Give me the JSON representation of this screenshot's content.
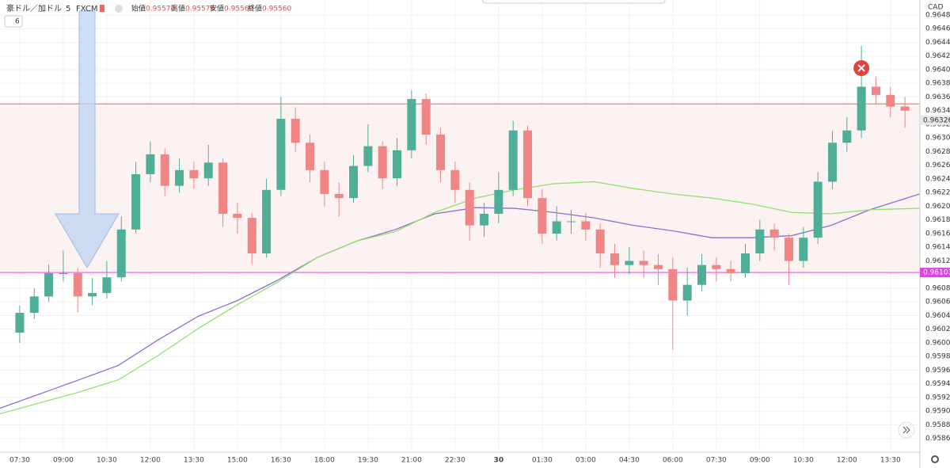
{
  "chart_data": {
    "type": "candlestick",
    "header": {
      "symbol": "豪ドル／加ドル",
      "interval": "5",
      "source": "FXCM",
      "open_label": "始値",
      "open": "0.95570",
      "high_label": "高値",
      "high": "0.95570",
      "low_label": "安値",
      "low": "0.95560",
      "close_label": "終値",
      "close": "0.95560",
      "indicators": "6"
    },
    "y_unit": "CAD",
    "up_color": "#4fae97",
    "down_color": "#ef8585",
    "x": [
      0,
      1,
      2,
      3,
      4,
      5,
      6,
      7,
      8,
      9,
      10,
      11,
      12,
      13,
      14,
      15,
      16,
      17,
      18,
      19,
      20,
      21,
      22,
      23,
      24,
      25,
      26,
      27,
      28,
      29,
      30,
      31,
      32,
      33,
      34,
      35,
      36,
      37,
      38,
      39,
      40,
      41,
      42,
      43,
      44,
      45,
      46,
      47,
      48,
      49,
      50,
      51,
      52,
      53,
      54,
      55,
      56,
      57,
      58,
      59,
      60,
      61
    ],
    "open": [
      0.96015,
      0.96044,
      0.96068,
      0.96102,
      0.96102,
      0.96068,
      0.96073,
      0.96096,
      0.96166,
      0.96247,
      0.96276,
      0.9623,
      0.96253,
      0.96241,
      0.96264,
      0.96189,
      0.96183,
      0.96131,
      0.96224,
      0.96328,
      0.96293,
      0.96253,
      0.96218,
      0.96212,
      0.96259,
      0.96288,
      0.96241,
      0.96282,
      0.96357,
      0.96305,
      0.96253,
      0.96224,
      0.96172,
      0.96189,
      0.96224,
      0.96311,
      0.96212,
      0.9616,
      0.96178,
      0.96178,
      0.96166,
      0.96131,
      0.96114,
      0.9612,
      0.96114,
      0.96108,
      0.96062,
      0.96085,
      0.96114,
      0.96108,
      0.96102,
      0.96131,
      0.96166,
      0.96154,
      0.9612,
      0.96154,
      0.96236,
      0.96293,
      0.96311,
      0.96375,
      0.96363,
      0.96346
    ],
    "high": [
      0.96055,
      0.9608,
      0.96115,
      0.96135,
      0.9611,
      0.96095,
      0.9612,
      0.96185,
      0.96265,
      0.96295,
      0.96285,
      0.9627,
      0.96265,
      0.9629,
      0.9627,
      0.96205,
      0.9619,
      0.9624,
      0.9636,
      0.96345,
      0.96305,
      0.96265,
      0.96235,
      0.96275,
      0.9632,
      0.96295,
      0.963,
      0.9637,
      0.96365,
      0.96315,
      0.96265,
      0.96235,
      0.96205,
      0.9625,
      0.96325,
      0.96318,
      0.96225,
      0.962,
      0.96195,
      0.9619,
      0.96175,
      0.96145,
      0.9614,
      0.96135,
      0.9613,
      0.96125,
      0.9611,
      0.9613,
      0.96125,
      0.9612,
      0.96145,
      0.9618,
      0.96175,
      0.9616,
      0.9617,
      0.9625,
      0.9631,
      0.9633,
      0.96435,
      0.9639,
      0.96375,
      0.9636
    ],
    "low": [
      0.96,
      0.96035,
      0.9606,
      0.9609,
      0.96045,
      0.96055,
      0.96065,
      0.9609,
      0.9616,
      0.96235,
      0.96215,
      0.9622,
      0.96225,
      0.9623,
      0.9617,
      0.9616,
      0.96115,
      0.96125,
      0.96215,
      0.9628,
      0.96235,
      0.962,
      0.96185,
      0.96205,
      0.9625,
      0.96225,
      0.9623,
      0.9627,
      0.9629,
      0.96235,
      0.96205,
      0.9615,
      0.96155,
      0.96175,
      0.96215,
      0.962,
      0.96145,
      0.9615,
      0.9616,
      0.9615,
      0.9611,
      0.96095,
      0.961,
      0.96095,
      0.96085,
      0.9599,
      0.9604,
      0.96075,
      0.9609,
      0.9609,
      0.96095,
      0.9612,
      0.96135,
      0.96085,
      0.9611,
      0.96145,
      0.96225,
      0.9628,
      0.963,
      0.9635,
      0.9633,
      0.96315
    ],
    "close": [
      0.96044,
      0.96068,
      0.96102,
      0.96102,
      0.96068,
      0.96073,
      0.96096,
      0.96166,
      0.96247,
      0.96276,
      0.9623,
      0.96253,
      0.96241,
      0.96264,
      0.96189,
      0.96183,
      0.96131,
      0.96224,
      0.96328,
      0.96293,
      0.96253,
      0.96218,
      0.96212,
      0.96259,
      0.96288,
      0.96241,
      0.96282,
      0.96357,
      0.96305,
      0.96253,
      0.96224,
      0.96172,
      0.96189,
      0.96224,
      0.96311,
      0.96212,
      0.9616,
      0.96178,
      0.96178,
      0.96166,
      0.96131,
      0.96114,
      0.9612,
      0.96114,
      0.96108,
      0.96062,
      0.96085,
      0.96114,
      0.96108,
      0.96102,
      0.96131,
      0.96166,
      0.96154,
      0.9612,
      0.96154,
      0.96236,
      0.96293,
      0.96311,
      0.96375,
      0.96363,
      0.96346,
      0.9634
    ],
    "lines": [
      {
        "color": "#8a6fd0",
        "x": [
          -1.4,
          4.1,
          6.8,
          9.5,
          12.3,
          15,
          17.7,
          20.5,
          23.2,
          25.9,
          28.6,
          31.4,
          34.1,
          36.8,
          39.6,
          42.3,
          45,
          47.7,
          50.5,
          53.2,
          55.9,
          58.6,
          62
        ],
        "values": [
          0.95904,
          0.95946,
          0.95967,
          0.96004,
          0.96039,
          0.96062,
          0.96091,
          0.96125,
          0.96149,
          0.96166,
          0.96189,
          0.96198,
          0.96197,
          0.96191,
          0.96183,
          0.96172,
          0.96164,
          0.96154,
          0.96154,
          0.96157,
          0.96172,
          0.96195,
          0.96218
        ]
      },
      {
        "color": "#8fe36b",
        "x": [
          -1.4,
          4.1,
          6.8,
          9.5,
          12.3,
          15,
          17.7,
          20.5,
          23.2,
          25.9,
          28.6,
          31.4,
          34.1,
          36.8,
          39.6,
          42.3,
          45,
          47.7,
          50.5,
          53.2,
          55.9,
          58.6,
          62
        ],
        "values": [
          0.95896,
          0.95928,
          0.95946,
          0.95981,
          0.96021,
          0.96056,
          0.96088,
          0.96125,
          0.96149,
          0.96163,
          0.96191,
          0.96212,
          0.96224,
          0.96233,
          0.96236,
          0.96226,
          0.96218,
          0.96212,
          0.96203,
          0.96191,
          0.96189,
          0.96195,
          0.96197
        ]
      }
    ],
    "hlines": [
      {
        "value": 0.9635,
        "color": "#e06a5a"
      },
      {
        "value": 0.96103,
        "color": "#e040e8",
        "label": "0.96103"
      }
    ],
    "last_price": {
      "value": 0.96326,
      "label": "0.96326"
    },
    "xlim": [
      -1.36,
      62.03
    ],
    "ylim": [
      0.9584,
      0.96502
    ],
    "xticks": [
      {
        "value": 0,
        "label": "07:30"
      },
      {
        "value": 3,
        "label": "09:00"
      },
      {
        "value": 6,
        "label": "10:30"
      },
      {
        "value": 9,
        "label": "12:00"
      },
      {
        "value": 12,
        "label": "13:30"
      },
      {
        "value": 15,
        "label": "15:00"
      },
      {
        "value": 18,
        "label": "16:30"
      },
      {
        "value": 21,
        "label": "18:00"
      },
      {
        "value": 24,
        "label": "19:30"
      },
      {
        "value": 27,
        "label": "21:00"
      },
      {
        "value": 30,
        "label": "22:30"
      },
      {
        "value": 33,
        "label": "30"
      },
      {
        "value": 36,
        "label": "01:30"
      },
      {
        "value": 39,
        "label": "03:00"
      },
      {
        "value": 42,
        "label": "04:30"
      },
      {
        "value": 45,
        "label": "06:00"
      },
      {
        "value": 48,
        "label": "07:30"
      },
      {
        "value": 51,
        "label": "09:00"
      },
      {
        "value": 54,
        "label": "10:30"
      },
      {
        "value": 57,
        "label": "12:00"
      },
      {
        "value": 60,
        "label": "13:30"
      }
    ],
    "yticks": [
      {
        "value": 0.9586,
        "label": "0.95860"
      },
      {
        "value": 0.9588,
        "label": "0.95880"
      },
      {
        "value": 0.959,
        "label": "0.95900"
      },
      {
        "value": 0.9592,
        "label": "0.95920"
      },
      {
        "value": 0.9594,
        "label": "0.95940"
      },
      {
        "value": 0.9596,
        "label": "0.95960"
      },
      {
        "value": 0.9598,
        "label": "0.95980"
      },
      {
        "value": 0.96,
        "label": "0.96000"
      },
      {
        "value": 0.9602,
        "label": "0.96020"
      },
      {
        "value": 0.9604,
        "label": "0.96040"
      },
      {
        "value": 0.9606,
        "label": "0.96060"
      },
      {
        "value": 0.9608,
        "label": "0.96080"
      },
      {
        "value": 0.961,
        "label": "0.96100"
      },
      {
        "value": 0.9612,
        "label": "0.96120"
      },
      {
        "value": 0.9614,
        "label": "0.96140"
      },
      {
        "value": 0.9616,
        "label": "0.96160"
      },
      {
        "value": 0.9618,
        "label": "0.96180"
      },
      {
        "value": 0.962,
        "label": "0.96200"
      },
      {
        "value": 0.9622,
        "label": "0.96220"
      },
      {
        "value": 0.9624,
        "label": "0.96240"
      },
      {
        "value": 0.9626,
        "label": "0.96260"
      },
      {
        "value": 0.9628,
        "label": "0.96280"
      },
      {
        "value": 0.963,
        "label": "0.96300"
      },
      {
        "value": 0.9632,
        "label": "0.96320"
      },
      {
        "value": 0.9634,
        "label": "0.96340"
      },
      {
        "value": 0.9636,
        "label": "0.96360"
      },
      {
        "value": 0.9638,
        "label": "0.96380"
      },
      {
        "value": 0.964,
        "label": "0.96400"
      },
      {
        "value": 0.9642,
        "label": "0.96420"
      },
      {
        "value": 0.9644,
        "label": "0.96440"
      },
      {
        "value": 0.9646,
        "label": "0.96460"
      },
      {
        "value": 0.9648,
        "label": "0.96480"
      }
    ],
    "grid": true
  }
}
